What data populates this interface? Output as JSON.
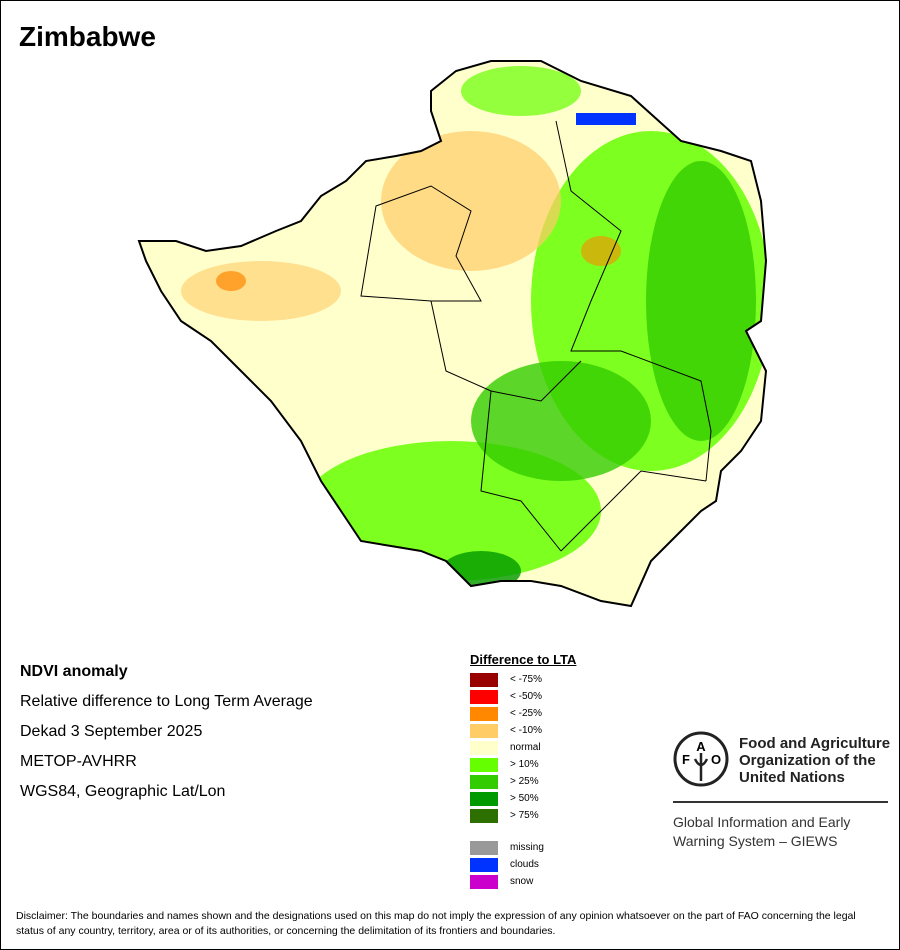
{
  "title": "Zimbabwe",
  "info": {
    "heading": "NDVI anomaly",
    "line1": "Relative difference to Long Term Average",
    "line2": "Dekad 3 September 2025",
    "line3": "METOP-AVHRR",
    "line4": "WGS84, Geographic Lat/Lon"
  },
  "legend": {
    "title": "Difference to LTA",
    "items": [
      {
        "label": "< -75%",
        "color": "#990000"
      },
      {
        "label": "< -50%",
        "color": "#ff0000"
      },
      {
        "label": "< -25%",
        "color": "#ff8800"
      },
      {
        "label": "< -10%",
        "color": "#ffcc66"
      },
      {
        "label": "normal",
        "color": "#ffffcc"
      },
      {
        "label": "> 10%",
        "color": "#66ff00"
      },
      {
        "label": "> 25%",
        "color": "#33cc00"
      },
      {
        "label": "> 50%",
        "color": "#009900"
      },
      {
        "label": "> 75%",
        "color": "#2d7000"
      }
    ],
    "extra": [
      {
        "label": "missing",
        "color": "#999999"
      },
      {
        "label": "clouds",
        "color": "#0033ff"
      },
      {
        "label": "snow",
        "color": "#cc00cc"
      }
    ]
  },
  "fao": {
    "name": "Food and Agriculture Organization of the United Nations",
    "logo_text": "FAO FIAT PANIS",
    "system": "Global Information and Early Warning System – GIEWS"
  },
  "disclaimer": "Disclaimer: The boundaries and names shown and the designations used on this map do not imply the expression of any opinion whatsoever on the part of FAO concerning the legal status of any country, territory, area or of its authorities, or concerning the delimitation of its frontiers and boundaries."
}
